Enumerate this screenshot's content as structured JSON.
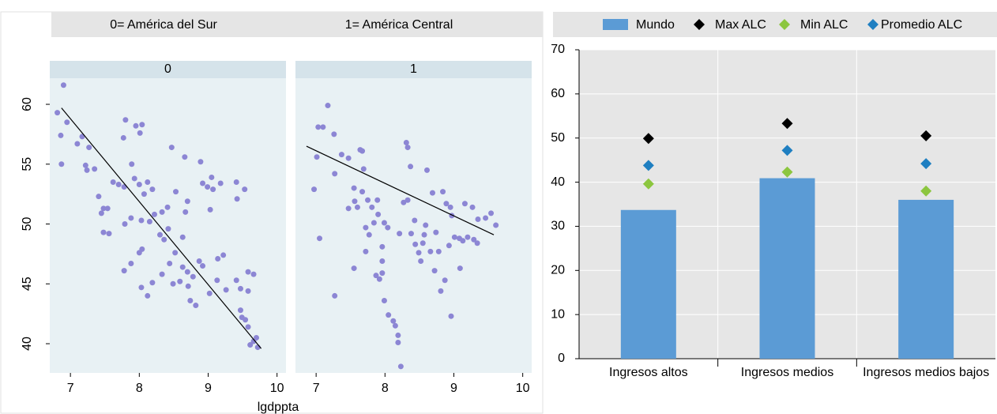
{
  "chart_data": [
    {
      "type": "scatter",
      "group_labels": [
        "0= América del Sur",
        "1= América Central"
      ],
      "xlabel": "lgdppta",
      "color": "#8c86d4",
      "xlim": [
        6.7,
        10.13
      ],
      "ylim": [
        37.56,
        62.18
      ],
      "xticks": [
        7,
        8,
        9,
        10
      ],
      "yticks": [
        40,
        45,
        50,
        55,
        60
      ],
      "facets": [
        {
          "label": "0",
          "x": [
            6.9,
            6.81,
            6.95,
            6.86,
            6.87,
            7.1,
            7.17,
            7.27,
            7.22,
            7.24,
            7.35,
            7.41,
            7.48,
            7.54,
            7.45,
            7.48,
            7.56,
            7.62,
            7.7,
            7.78,
            7.8,
            7.95,
            8.04,
            7.77,
            8.01,
            7.89,
            7.93,
            8.0,
            8.07,
            8.12,
            8.19,
            7.88,
            7.79,
            8.03,
            8.15,
            8.22,
            8.33,
            8.41,
            8.3,
            8.42,
            8.47,
            8.66,
            8.53,
            8.7,
            8.67,
            8.36,
            8.52,
            8.63,
            8.44,
            8.63,
            8.7,
            8.59,
            8.78,
            7.78,
            7.88,
            8.0,
            8.04,
            8.03,
            8.12,
            8.19,
            8.33,
            8.49,
            8.71,
            8.74,
            8.82,
            8.87,
            8.92,
            8.89,
            8.92,
            8.99,
            9.05,
            9.07,
            9.03,
            9.18,
            9.41,
            9.42,
            9.53,
            9.22,
            9.14,
            9.02,
            9.13,
            9.26,
            9.47,
            9.41,
            9.58,
            9.66,
            9.58,
            9.47,
            9.49,
            9.54,
            9.58,
            9.61,
            9.66,
            9.7,
            9.72
          ],
          "y": [
            61.6,
            59.3,
            58.5,
            57.4,
            55.0,
            56.7,
            57.3,
            56.4,
            54.9,
            54.5,
            54.6,
            52.3,
            51.3,
            51.3,
            50.9,
            49.3,
            49.2,
            53.5,
            53.3,
            53.1,
            58.7,
            58.2,
            58.3,
            57.2,
            57.6,
            55.0,
            53.8,
            53.3,
            52.5,
            53.5,
            52.9,
            50.5,
            50.0,
            50.3,
            50.2,
            50.8,
            51.0,
            51.4,
            49.1,
            49.6,
            56.4,
            55.6,
            52.7,
            51.9,
            51.0,
            48.7,
            47.6,
            48.9,
            46.7,
            46.4,
            46.0,
            45.2,
            45.6,
            46.1,
            46.7,
            47.6,
            47.9,
            44.7,
            44.0,
            45.1,
            45.8,
            45.0,
            44.8,
            43.6,
            43.2,
            46.9,
            46.5,
            55.2,
            53.4,
            53.1,
            53.9,
            52.9,
            51.2,
            53.4,
            53.5,
            52.1,
            52.9,
            47.4,
            47.1,
            44.2,
            45.3,
            44.5,
            44.6,
            45.3,
            46.0,
            45.8,
            44.4,
            42.8,
            42.2,
            42.0,
            41.4,
            39.9,
            40.2,
            40.5,
            39.7
          ],
          "fit_x": [
            6.87,
            9.77
          ],
          "fit_y": [
            59.7,
            39.6
          ]
        },
        {
          "label": "1",
          "x": [
            7.17,
            7.03,
            7.1,
            7.01,
            6.97,
            7.05,
            7.27,
            7.26,
            7.37,
            7.47,
            7.64,
            7.67,
            7.69,
            7.55,
            7.56,
            7.47,
            7.6,
            7.67,
            7.75,
            7.81,
            7.89,
            7.9,
            7.72,
            7.77,
            7.72,
            7.84,
            7.99,
            8.04,
            7.96,
            7.96,
            7.87,
            7.92,
            7.96,
            7.55,
            7.27,
            7.99,
            8.05,
            8.12,
            8.15,
            8.19,
            8.19,
            8.23,
            8.31,
            8.33,
            8.27,
            8.33,
            8.37,
            8.61,
            8.21,
            8.38,
            8.44,
            8.49,
            8.57,
            8.55,
            8.66,
            8.74,
            8.78,
            8.72,
            8.81,
            8.87,
            8.69,
            8.84,
            8.89,
            8.95,
            8.97,
            8.93,
            9.01,
            9.08,
            9.13,
            9.2,
            9.29,
            9.34,
            8.96,
            9.09,
            9.16,
            9.27,
            9.35,
            9.46,
            9.54,
            9.61,
            8.52,
            8.59,
            8.43
          ],
          "y": [
            59.9,
            58.1,
            58.1,
            55.6,
            52.9,
            48.8,
            54.2,
            57.5,
            55.8,
            55.5,
            56.2,
            56.1,
            54.6,
            53.0,
            51.9,
            51.3,
            51.4,
            52.7,
            52.0,
            51.4,
            52.0,
            50.8,
            49.7,
            49.1,
            47.7,
            50.1,
            50.1,
            49.7,
            48.1,
            46.9,
            45.7,
            45.4,
            45.9,
            46.3,
            44.0,
            43.6,
            42.4,
            41.9,
            41.5,
            40.7,
            40.1,
            38.1,
            56.8,
            56.4,
            51.8,
            52.0,
            54.8,
            54.5,
            49.2,
            49.2,
            48.3,
            47.6,
            49.1,
            48.4,
            47.7,
            49.3,
            47.7,
            46.1,
            44.4,
            45.3,
            52.6,
            52.7,
            51.7,
            51.4,
            50.7,
            48.2,
            48.9,
            48.8,
            48.6,
            48.9,
            48.7,
            48.4,
            42.3,
            46.3,
            51.7,
            51.4,
            50.4,
            50.5,
            50.9,
            49.9,
            46.9,
            49.9,
            50.3
          ],
          "fit_x": [
            6.86,
            9.58
          ],
          "fit_y": [
            56.5,
            49.1
          ]
        }
      ]
    },
    {
      "type": "bar",
      "categories": [
        "Ingresos altos",
        "Ingresos medios",
        "Ingresos medios bajos"
      ],
      "ylim": [
        0,
        70
      ],
      "yticks": [
        0,
        10,
        20,
        30,
        40,
        50,
        60,
        70
      ],
      "grid": true,
      "series": [
        {
          "name": "Mundo",
          "kind": "bar",
          "color": "#5b9bd5",
          "values": [
            33.7,
            40.9,
            36.0
          ]
        },
        {
          "name": "Max ALC",
          "kind": "diamond",
          "color": "#000000",
          "values": [
            49.9,
            53.3,
            50.5
          ]
        },
        {
          "name": "Min ALC",
          "kind": "diamond",
          "color": "#8cc63f",
          "values": [
            39.6,
            42.3,
            38.0
          ]
        },
        {
          "name": "Promedio ALC",
          "kind": "diamond",
          "color": "#1f7fc1",
          "values": [
            43.8,
            47.2,
            44.2
          ]
        }
      ]
    }
  ]
}
